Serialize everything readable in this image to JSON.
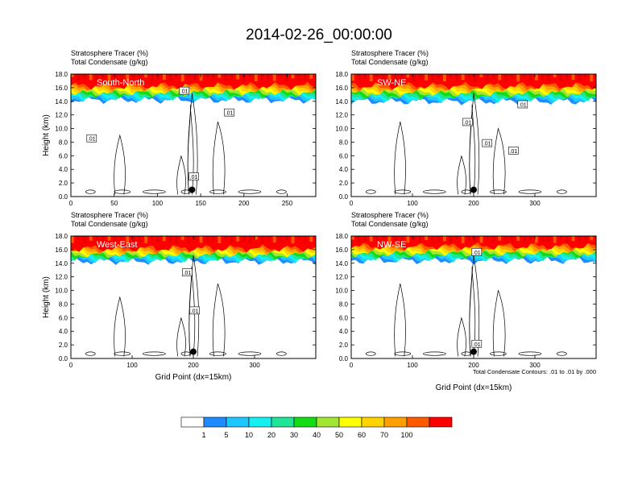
{
  "figure": {
    "title": "2014-02-26_00:00:00",
    "xlabel": "Grid Point (dx=15km)",
    "contour_note": "Total Condensate Contours: .01 to .01 by .000"
  },
  "colorbar": {
    "colors": [
      "#ffffff",
      "#1e8cff",
      "#1ec8ff",
      "#14f0f0",
      "#1ee696",
      "#14dc14",
      "#a0e632",
      "#ffff00",
      "#ffd200",
      "#ffa000",
      "#ff5a00",
      "#ff0000"
    ],
    "labels": [
      "1",
      "5",
      "10",
      "20",
      "30",
      "40",
      "50",
      "60",
      "70",
      "100"
    ]
  },
  "chart_data": [
    {
      "type": "heatmap",
      "panel_label": "South-North",
      "header": [
        "Stratosphere Tracer   (%)",
        "Total Condensate   (g/kg)"
      ],
      "ylabel": "Height (km)",
      "xlabel": "",
      "xlim": [
        0,
        283
      ],
      "ylim": [
        0,
        18
      ],
      "xticks": [
        "0",
        "50",
        "100",
        "150",
        "200",
        "250"
      ],
      "xtick_values": [
        0,
        50,
        100,
        150,
        200,
        250
      ],
      "yticks": [
        "0.0",
        "2.0",
        "4.0",
        "6.0",
        "8.0",
        "10.0",
        "12.0",
        "14.0",
        "16.0",
        "18.0"
      ],
      "tracer_100_base_km": 16.3,
      "tracer_1_base_km": 14.2,
      "marker_x": 140,
      "marker_km": 1.0,
      "contour_labels": [
        {
          "text": ".01",
          "x": 24,
          "km": 8.5
        },
        {
          "text": ".01",
          "x": 131,
          "km": 15.5
        },
        {
          "text": ".01",
          "x": 183,
          "km": 12.3
        },
        {
          "text": ".01",
          "x": 142,
          "km": 2.9
        }
      ]
    },
    {
      "type": "heatmap",
      "panel_label": "SW-NE",
      "header": [
        "Stratosphere Tracer   (%)",
        "Total Condensate   (g/kg)"
      ],
      "ylabel": "",
      "xlabel": "",
      "xlim": [
        0,
        400
      ],
      "ylim": [
        0,
        18
      ],
      "xticks": [
        "0",
        "100",
        "200",
        "300"
      ],
      "xtick_values": [
        0,
        100,
        200,
        300
      ],
      "yticks": [
        "0.0",
        "2.0",
        "4.0",
        "6.0",
        "8.0",
        "10.0",
        "12.0",
        "14.0",
        "16.0",
        "18.0"
      ],
      "tracer_100_base_km": 16.3,
      "tracer_1_base_km": 14.0,
      "marker_x": 200,
      "marker_km": 1.0,
      "contour_labels": [
        {
          "text": ".01",
          "x": 190,
          "km": 10.9
        },
        {
          "text": ".01",
          "x": 222,
          "km": 7.8
        },
        {
          "text": ".01",
          "x": 265,
          "km": 6.7
        },
        {
          "text": ".01",
          "x": 280,
          "km": 13.5
        }
      ]
    },
    {
      "type": "heatmap",
      "panel_label": "West-East",
      "header": [
        "Stratosphere Tracer   (%)",
        "Total Condensate   (g/kg)"
      ],
      "ylabel": "Height (km)",
      "xlabel": "",
      "xlim": [
        0,
        400
      ],
      "ylim": [
        0,
        18
      ],
      "xticks": [
        "0",
        "100",
        "200",
        "300"
      ],
      "xtick_values": [
        0,
        100,
        200,
        300
      ],
      "yticks": [
        "0.0",
        "2.0",
        "4.0",
        "6.0",
        "8.0",
        "10.0",
        "12.0",
        "14.0",
        "16.0",
        "18.0"
      ],
      "tracer_100_base_km": 16.2,
      "tracer_1_base_km": 14.3,
      "marker_x": 200,
      "marker_km": 1.0,
      "contour_labels": [
        {
          "text": ".01",
          "x": 190,
          "km": 12.6
        },
        {
          "text": ".01",
          "x": 202,
          "km": 7.0
        }
      ]
    },
    {
      "type": "heatmap",
      "panel_label": "NW-SE",
      "header": [
        "Stratosphere Tracer   (%)",
        "Total Condensate   (g/kg)"
      ],
      "ylabel": "",
      "xlabel": "",
      "xlim": [
        0,
        400
      ],
      "ylim": [
        0,
        18
      ],
      "xticks": [
        "0",
        "100",
        "200",
        "300"
      ],
      "xtick_values": [
        0,
        100,
        200,
        300
      ],
      "yticks": [
        "0.0",
        "2.0",
        "4.0",
        "6.0",
        "8.0",
        "10.0",
        "12.0",
        "14.0",
        "16.0",
        "18.0"
      ],
      "tracer_100_base_km": 16.5,
      "tracer_1_base_km": 14.4,
      "marker_x": 200,
      "marker_km": 1.0,
      "contour_labels": [
        {
          "text": ".01",
          "x": 205,
          "km": 15.6
        },
        {
          "text": ".01",
          "x": 205,
          "km": 2.1
        }
      ]
    }
  ]
}
